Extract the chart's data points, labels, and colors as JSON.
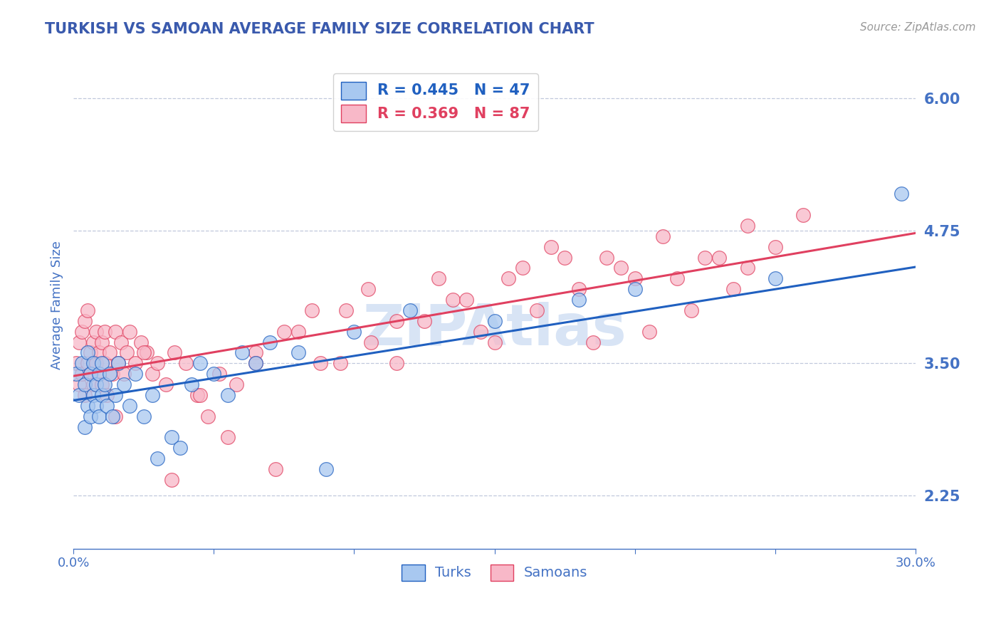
{
  "title": "TURKISH VS SAMOAN AVERAGE FAMILY SIZE CORRELATION CHART",
  "source_text": "Source: ZipAtlas.com",
  "ylabel": "Average Family Size",
  "xmin": 0.0,
  "xmax": 0.3,
  "ymin": 1.75,
  "ymax": 6.35,
  "yticks": [
    2.25,
    3.5,
    4.75,
    6.0
  ],
  "xticks": [
    0.0,
    0.05,
    0.1,
    0.15,
    0.2,
    0.25,
    0.3
  ],
  "xtick_labels": [
    "0.0%",
    "",
    "",
    "",
    "",
    "",
    "30.0%"
  ],
  "title_color": "#3a5aad",
  "axis_color": "#4472c4",
  "grid_color": "#c0c8dc",
  "turks_color": "#a8c8f0",
  "samoans_color": "#f8b8c8",
  "turk_line_color": "#2060c0",
  "samoan_line_color": "#e04060",
  "watermark_color": "#d8e4f5",
  "R_turks": 0.445,
  "N_turks": 47,
  "R_samoans": 0.369,
  "N_samoans": 87,
  "turk_intercept": 3.15,
  "turk_slope": 4.2,
  "samoan_intercept": 3.38,
  "samoan_slope": 4.5,
  "turks_x": [
    0.001,
    0.002,
    0.003,
    0.004,
    0.004,
    0.005,
    0.005,
    0.006,
    0.006,
    0.007,
    0.007,
    0.008,
    0.008,
    0.009,
    0.009,
    0.01,
    0.01,
    0.011,
    0.012,
    0.013,
    0.014,
    0.015,
    0.016,
    0.018,
    0.02,
    0.022,
    0.025,
    0.028,
    0.03,
    0.035,
    0.038,
    0.042,
    0.045,
    0.05,
    0.055,
    0.06,
    0.065,
    0.07,
    0.08,
    0.09,
    0.1,
    0.12,
    0.15,
    0.18,
    0.2,
    0.25,
    0.295
  ],
  "turks_y": [
    3.4,
    3.2,
    3.5,
    3.3,
    2.9,
    3.1,
    3.6,
    3.0,
    3.4,
    3.2,
    3.5,
    3.1,
    3.3,
    3.0,
    3.4,
    3.2,
    3.5,
    3.3,
    3.1,
    3.4,
    3.0,
    3.2,
    3.5,
    3.3,
    3.1,
    3.4,
    3.0,
    3.2,
    2.6,
    2.8,
    2.7,
    3.3,
    3.5,
    3.4,
    3.2,
    3.6,
    3.5,
    3.7,
    3.6,
    2.5,
    3.8,
    4.0,
    3.9,
    4.1,
    4.2,
    4.3,
    5.1
  ],
  "samoans_x": [
    0.001,
    0.002,
    0.002,
    0.003,
    0.003,
    0.004,
    0.004,
    0.005,
    0.005,
    0.006,
    0.006,
    0.007,
    0.007,
    0.008,
    0.008,
    0.009,
    0.009,
    0.01,
    0.01,
    0.011,
    0.011,
    0.012,
    0.013,
    0.014,
    0.015,
    0.016,
    0.017,
    0.018,
    0.019,
    0.02,
    0.022,
    0.024,
    0.026,
    0.028,
    0.03,
    0.033,
    0.036,
    0.04,
    0.044,
    0.048,
    0.052,
    0.058,
    0.065,
    0.072,
    0.08,
    0.088,
    0.097,
    0.106,
    0.115,
    0.125,
    0.135,
    0.145,
    0.155,
    0.165,
    0.175,
    0.185,
    0.195,
    0.205,
    0.215,
    0.225,
    0.235,
    0.24,
    0.015,
    0.025,
    0.035,
    0.045,
    0.055,
    0.065,
    0.075,
    0.085,
    0.095,
    0.105,
    0.115,
    0.13,
    0.14,
    0.15,
    0.16,
    0.17,
    0.18,
    0.19,
    0.2,
    0.21,
    0.22,
    0.23,
    0.24,
    0.25,
    0.26
  ],
  "samoans_y": [
    3.5,
    3.3,
    3.7,
    3.4,
    3.8,
    3.2,
    3.9,
    3.5,
    4.0,
    3.4,
    3.6,
    3.3,
    3.7,
    3.5,
    3.8,
    3.4,
    3.6,
    3.3,
    3.7,
    3.5,
    3.8,
    3.2,
    3.6,
    3.4,
    3.8,
    3.5,
    3.7,
    3.4,
    3.6,
    3.8,
    3.5,
    3.7,
    3.6,
    3.4,
    3.5,
    3.3,
    3.6,
    3.5,
    3.2,
    3.0,
    3.4,
    3.3,
    3.6,
    2.5,
    3.8,
    3.5,
    4.0,
    3.7,
    3.5,
    3.9,
    4.1,
    3.8,
    4.3,
    4.0,
    4.5,
    3.7,
    4.4,
    3.8,
    4.3,
    4.5,
    4.2,
    4.4,
    3.0,
    3.6,
    2.4,
    3.2,
    2.8,
    3.5,
    3.8,
    4.0,
    3.5,
    4.2,
    3.9,
    4.3,
    4.1,
    3.7,
    4.4,
    4.6,
    4.2,
    4.5,
    4.3,
    4.7,
    4.0,
    4.5,
    4.8,
    4.6,
    4.9
  ]
}
